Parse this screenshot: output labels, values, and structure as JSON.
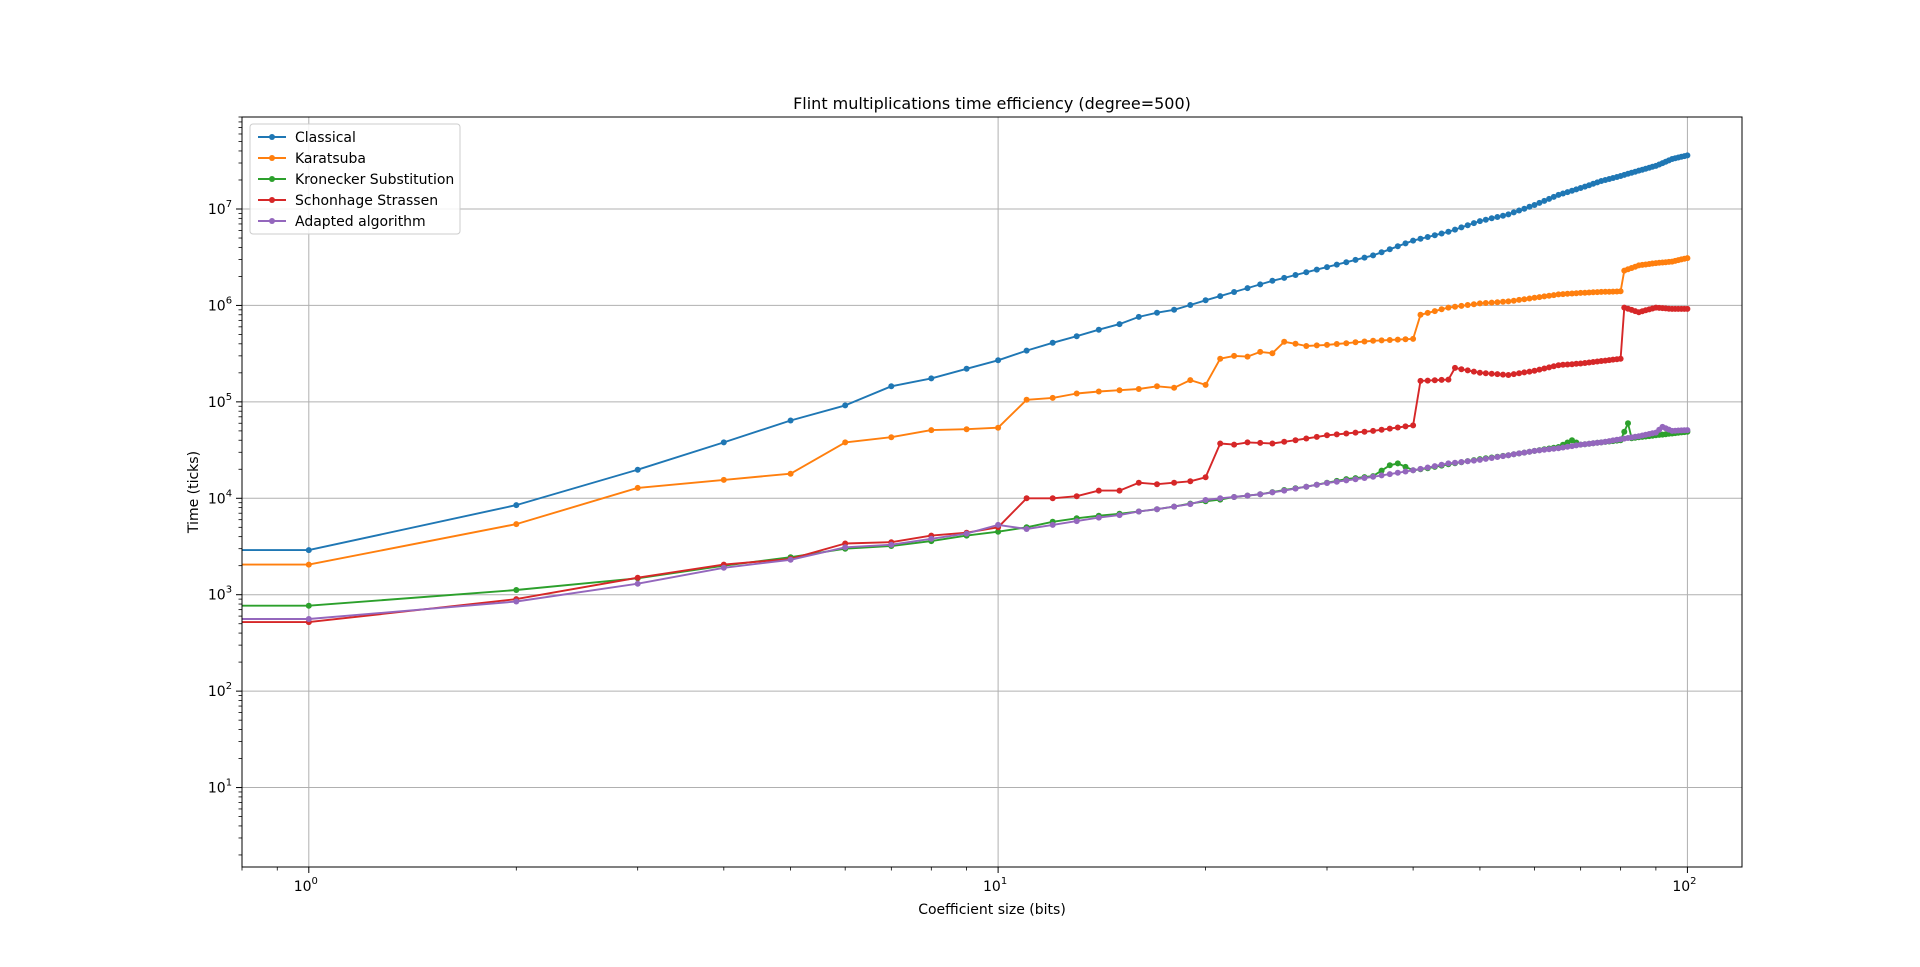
{
  "chart_data": {
    "type": "line",
    "title": "Flint multiplications time efficiency (degree=500)",
    "xlabel": "Coefficient size (bits)",
    "ylabel": "Time (ticks)",
    "xscale": "log",
    "yscale": "log",
    "xlim": [
      0.8,
      120
    ],
    "ylim": [
      1.5,
      90000000
    ],
    "grid": true,
    "legend_position": "top-left",
    "x_tick_labels": [
      {
        "base": "10",
        "exp": "0",
        "value": 1
      },
      {
        "base": "10",
        "exp": "1",
        "value": 10
      },
      {
        "base": "10",
        "exp": "2",
        "value": 100
      }
    ],
    "y_tick_labels": [
      {
        "base": "10",
        "exp": "1",
        "value": 10
      },
      {
        "base": "10",
        "exp": "2",
        "value": 100
      },
      {
        "base": "10",
        "exp": "3",
        "value": 1000
      },
      {
        "base": "10",
        "exp": "4",
        "value": 10000
      },
      {
        "base": "10",
        "exp": "5",
        "value": 100000
      },
      {
        "base": "10",
        "exp": "6",
        "value": 1000000
      },
      {
        "base": "10",
        "exp": "7",
        "value": 10000000
      }
    ],
    "series": [
      {
        "name": "Classical",
        "color": "#1f77b4",
        "anchors": [
          [
            0.8,
            2900
          ],
          [
            1,
            2900
          ],
          [
            2,
            8500
          ],
          [
            3,
            19800
          ],
          [
            4,
            38000
          ],
          [
            5,
            64000
          ],
          [
            6,
            92000
          ],
          [
            7,
            145000
          ],
          [
            8,
            175000
          ],
          [
            9,
            220000
          ],
          [
            10,
            270000
          ],
          [
            11,
            340000
          ],
          [
            12,
            410000
          ],
          [
            13,
            480000
          ],
          [
            14,
            560000
          ],
          [
            15,
            640000
          ],
          [
            16,
            760000
          ],
          [
            17,
            840000
          ],
          [
            18,
            900000
          ],
          [
            19,
            1010000
          ],
          [
            20,
            1130000
          ],
          [
            25,
            1800000
          ],
          [
            30,
            2500000
          ],
          [
            35,
            3300000
          ],
          [
            40,
            4700000
          ],
          [
            45,
            5800000
          ],
          [
            50,
            7500000
          ],
          [
            55,
            8800000
          ],
          [
            60,
            11000000
          ],
          [
            65,
            14000000
          ],
          [
            70,
            16500000
          ],
          [
            75,
            19500000
          ],
          [
            80,
            22000000
          ],
          [
            85,
            25000000
          ],
          [
            90,
            28000000
          ],
          [
            95,
            33000000
          ],
          [
            100,
            36000000
          ]
        ]
      },
      {
        "name": "Karatsuba",
        "color": "#ff7f0e",
        "anchors": [
          [
            0.8,
            2050
          ],
          [
            1,
            2050
          ],
          [
            2,
            5400
          ],
          [
            3,
            12800
          ],
          [
            4,
            15500
          ],
          [
            5,
            18000
          ],
          [
            6,
            38000
          ],
          [
            7,
            43000
          ],
          [
            8,
            51000
          ],
          [
            9,
            52000
          ],
          [
            10,
            54000
          ],
          [
            11,
            105000
          ],
          [
            12,
            110000
          ],
          [
            13,
            122000
          ],
          [
            14,
            128000
          ],
          [
            15,
            132000
          ],
          [
            16,
            136000
          ],
          [
            17,
            145000
          ],
          [
            18,
            140000
          ],
          [
            19,
            168000
          ],
          [
            20,
            150000
          ],
          [
            21,
            280000
          ],
          [
            22,
            300000
          ],
          [
            23,
            295000
          ],
          [
            24,
            330000
          ],
          [
            25,
            320000
          ],
          [
            26,
            420000
          ],
          [
            27,
            400000
          ],
          [
            28,
            380000
          ],
          [
            30,
            390000
          ],
          [
            35,
            430000
          ],
          [
            40,
            450000
          ],
          [
            41,
            800000
          ],
          [
            45,
            950000
          ],
          [
            50,
            1050000
          ],
          [
            55,
            1100000
          ],
          [
            60,
            1200000
          ],
          [
            65,
            1300000
          ],
          [
            70,
            1350000
          ],
          [
            75,
            1380000
          ],
          [
            80,
            1400000
          ],
          [
            81,
            2300000
          ],
          [
            85,
            2600000
          ],
          [
            90,
            2750000
          ],
          [
            95,
            2850000
          ],
          [
            100,
            3100000
          ]
        ]
      },
      {
        "name": "Kronecker Substitution",
        "color": "#2ca02c",
        "anchors": [
          [
            0.8,
            770
          ],
          [
            1,
            770
          ],
          [
            2,
            1120
          ],
          [
            3,
            1480
          ],
          [
            4,
            2000
          ],
          [
            5,
            2450
          ],
          [
            6,
            3000
          ],
          [
            7,
            3200
          ],
          [
            8,
            3600
          ],
          [
            9,
            4100
          ],
          [
            10,
            4500
          ],
          [
            11,
            5000
          ],
          [
            12,
            5700
          ],
          [
            13,
            6200
          ],
          [
            14,
            6600
          ],
          [
            15,
            6900
          ],
          [
            16,
            7300
          ],
          [
            17,
            7700
          ],
          [
            18,
            8200
          ],
          [
            19,
            8800
          ],
          [
            20,
            9300
          ],
          [
            21,
            9700
          ],
          [
            22,
            10300
          ],
          [
            24,
            11000
          ],
          [
            26,
            12200
          ],
          [
            28,
            13200
          ],
          [
            30,
            14500
          ],
          [
            32,
            15800
          ],
          [
            35,
            17000
          ],
          [
            37,
            22000
          ],
          [
            38,
            23000
          ],
          [
            40,
            19500
          ],
          [
            42,
            20500
          ],
          [
            45,
            22500
          ],
          [
            50,
            25500
          ],
          [
            55,
            28000
          ],
          [
            60,
            31000
          ],
          [
            65,
            34000
          ],
          [
            68,
            40000
          ],
          [
            70,
            36000
          ],
          [
            75,
            38000
          ],
          [
            80,
            40000
          ],
          [
            82,
            60000
          ],
          [
            83,
            42000
          ],
          [
            90,
            45000
          ],
          [
            95,
            47000
          ],
          [
            100,
            49000
          ]
        ]
      },
      {
        "name": "Schonhage Strassen",
        "color": "#d62728",
        "anchors": [
          [
            0.8,
            520
          ],
          [
            1,
            520
          ],
          [
            2,
            900
          ],
          [
            3,
            1500
          ],
          [
            4,
            2050
          ],
          [
            5,
            2350
          ],
          [
            6,
            3400
          ],
          [
            7,
            3500
          ],
          [
            8,
            4100
          ],
          [
            9,
            4400
          ],
          [
            10,
            5000
          ],
          [
            11,
            10000
          ],
          [
            12,
            10000
          ],
          [
            13,
            10500
          ],
          [
            14,
            12000
          ],
          [
            15,
            12000
          ],
          [
            16,
            14500
          ],
          [
            17,
            14000
          ],
          [
            18,
            14500
          ],
          [
            19,
            15000
          ],
          [
            20,
            16500
          ],
          [
            21,
            37000
          ],
          [
            22,
            36000
          ],
          [
            23,
            38000
          ],
          [
            25,
            37000
          ],
          [
            27,
            40000
          ],
          [
            30,
            45000
          ],
          [
            35,
            50000
          ],
          [
            40,
            57000
          ],
          [
            41,
            165000
          ],
          [
            45,
            170000
          ],
          [
            46,
            225000
          ],
          [
            50,
            200000
          ],
          [
            55,
            190000
          ],
          [
            60,
            210000
          ],
          [
            65,
            240000
          ],
          [
            70,
            250000
          ],
          [
            75,
            265000
          ],
          [
            80,
            280000
          ],
          [
            81,
            950000
          ],
          [
            85,
            850000
          ],
          [
            90,
            950000
          ],
          [
            95,
            920000
          ],
          [
            100,
            920000
          ]
        ]
      },
      {
        "name": "Adapted algorithm",
        "color": "#9467bd",
        "anchors": [
          [
            0.8,
            560
          ],
          [
            1,
            560
          ],
          [
            2,
            850
          ],
          [
            3,
            1300
          ],
          [
            4,
            1900
          ],
          [
            5,
            2300
          ],
          [
            6,
            3100
          ],
          [
            7,
            3300
          ],
          [
            8,
            3800
          ],
          [
            9,
            4300
          ],
          [
            10,
            5300
          ],
          [
            11,
            4800
          ],
          [
            12,
            5300
          ],
          [
            13,
            5800
          ],
          [
            14,
            6300
          ],
          [
            15,
            6700
          ],
          [
            16,
            7300
          ],
          [
            17,
            7700
          ],
          [
            18,
            8200
          ],
          [
            19,
            8700
          ],
          [
            20,
            9600
          ],
          [
            21,
            10000
          ],
          [
            22,
            10300
          ],
          [
            24,
            11000
          ],
          [
            26,
            12000
          ],
          [
            28,
            13200
          ],
          [
            30,
            14400
          ],
          [
            35,
            16700
          ],
          [
            40,
            19500
          ],
          [
            45,
            23000
          ],
          [
            50,
            25000
          ],
          [
            55,
            28000
          ],
          [
            60,
            31000
          ],
          [
            65,
            33000
          ],
          [
            70,
            36000
          ],
          [
            75,
            38000
          ],
          [
            80,
            41000
          ],
          [
            85,
            44000
          ],
          [
            90,
            48000
          ],
          [
            92,
            55000
          ],
          [
            95,
            50000
          ],
          [
            100,
            51000
          ]
        ]
      }
    ]
  }
}
